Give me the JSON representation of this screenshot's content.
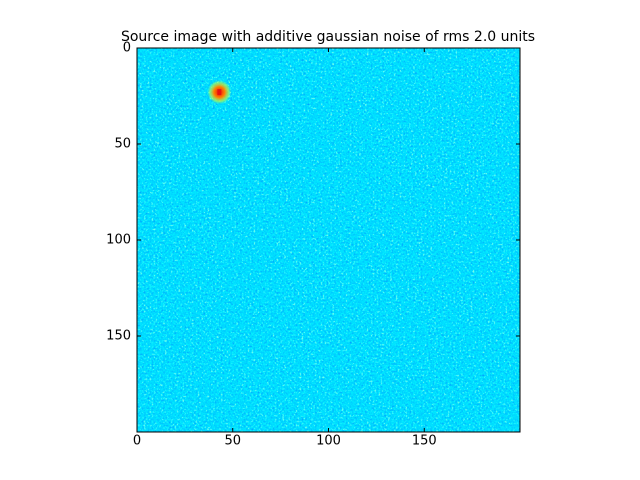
{
  "chart_data": {
    "type": "image",
    "title": "Source image with additive gaussian noise of rms 2.0 units",
    "colormap": "jet",
    "xlim": [
      0,
      200
    ],
    "ylim": [
      200,
      0
    ],
    "xticks": [
      0,
      50,
      100,
      150
    ],
    "yticks": [
      0,
      50,
      100,
      150
    ],
    "sources": {
      "x": [
        43
      ],
      "y": [
        23
      ],
      "color": "#e81010"
    }
  }
}
